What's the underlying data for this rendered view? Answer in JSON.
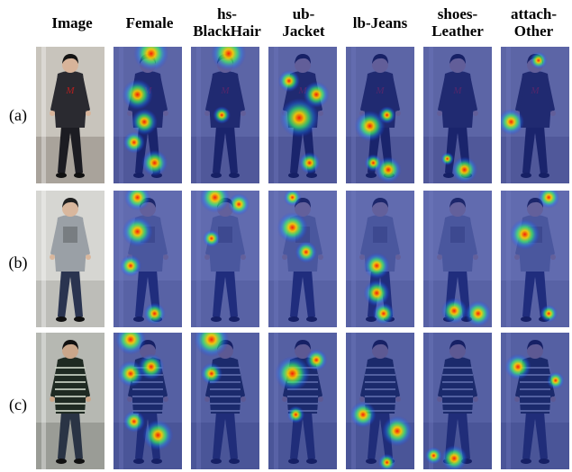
{
  "figure": {
    "column_headers": [
      {
        "line1": "Image",
        "line2": ""
      },
      {
        "line1": "Female",
        "line2": ""
      },
      {
        "line1": "hs-",
        "line2": "BlackHair"
      },
      {
        "line1": "ub-",
        "line2": "Jacket"
      },
      {
        "line1": "lb-Jeans",
        "line2": ""
      },
      {
        "line1": "shoes-",
        "line2": "Leather"
      },
      {
        "line1": "attach-",
        "line2": "Other"
      }
    ],
    "row_labels": [
      "(a)",
      "(b)",
      "(c)"
    ]
  }
}
